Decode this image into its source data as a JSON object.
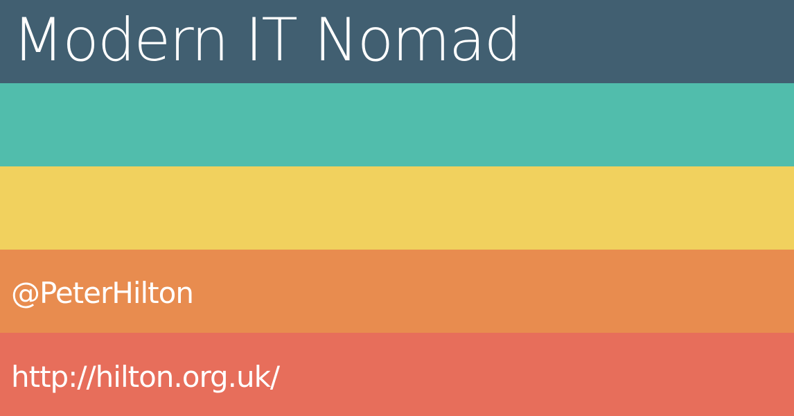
{
  "slide": {
    "title": "Modern IT Nomad",
    "handle": "@PeterHilton",
    "url": "http://hilton.org.uk/"
  },
  "colors": {
    "band_1": "#415f71",
    "band_2": "#51bdac",
    "band_3": "#f1d15e",
    "band_4": "#e88c4f",
    "band_5": "#e76e5b",
    "text": "#ffffff"
  }
}
